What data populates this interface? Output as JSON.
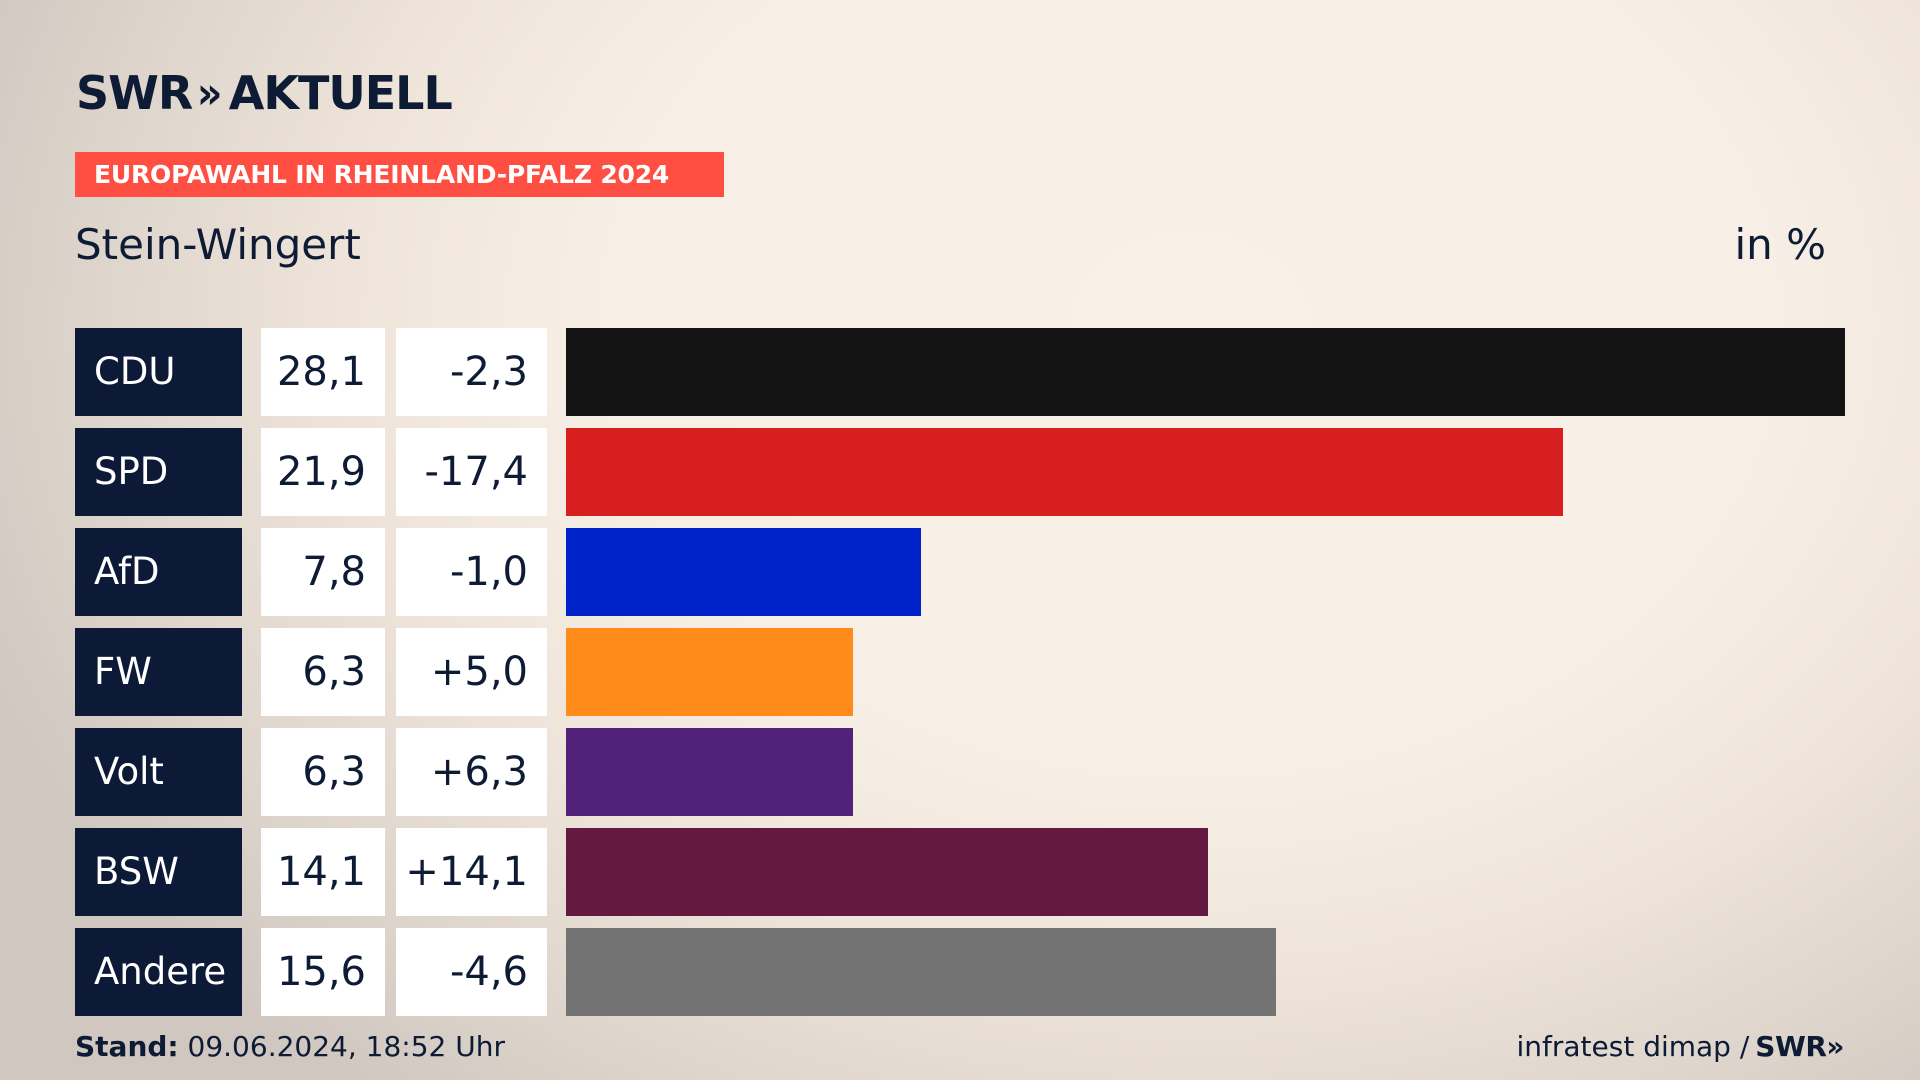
{
  "brand": {
    "logo_text": "SWR",
    "logo_chevrons": "»",
    "logo_section": "AKTUELL",
    "text_color": "#0d1b35"
  },
  "badge": {
    "text": "EUROPAWAHL IN RHEINLAND-PFALZ 2024",
    "color": "#ff4e42"
  },
  "location": "Stein-Wingert",
  "unit": "in %",
  "chart_data": {
    "type": "bar",
    "orientation": "horizontal",
    "categories": [
      "CDU",
      "SPD",
      "AfD",
      "FW",
      "Volt",
      "BSW",
      "Andere"
    ],
    "values": [
      28.1,
      21.9,
      7.8,
      6.3,
      6.3,
      14.1,
      15.6
    ],
    "value_labels": [
      "28,1",
      "21,9",
      "7,8",
      "6,3",
      "6,3",
      "14,1",
      "15,6"
    ],
    "change_labels": [
      "-2,3",
      "-17,4",
      "-1,0",
      "+5,0",
      "+6,3",
      "+14,1",
      "-4,6"
    ],
    "colors": [
      "#141414",
      "#d81f1f",
      "#0022c9",
      "#ff8c1a",
      "#52217a",
      "#641a40",
      "#737373"
    ],
    "xlim": [
      0,
      28.1
    ]
  },
  "footer": {
    "stand_label": "Stand:",
    "stand_value": "09.06.2024, 18:52 Uhr",
    "source": "infratest dimap /",
    "source_brand": "SWR»"
  }
}
